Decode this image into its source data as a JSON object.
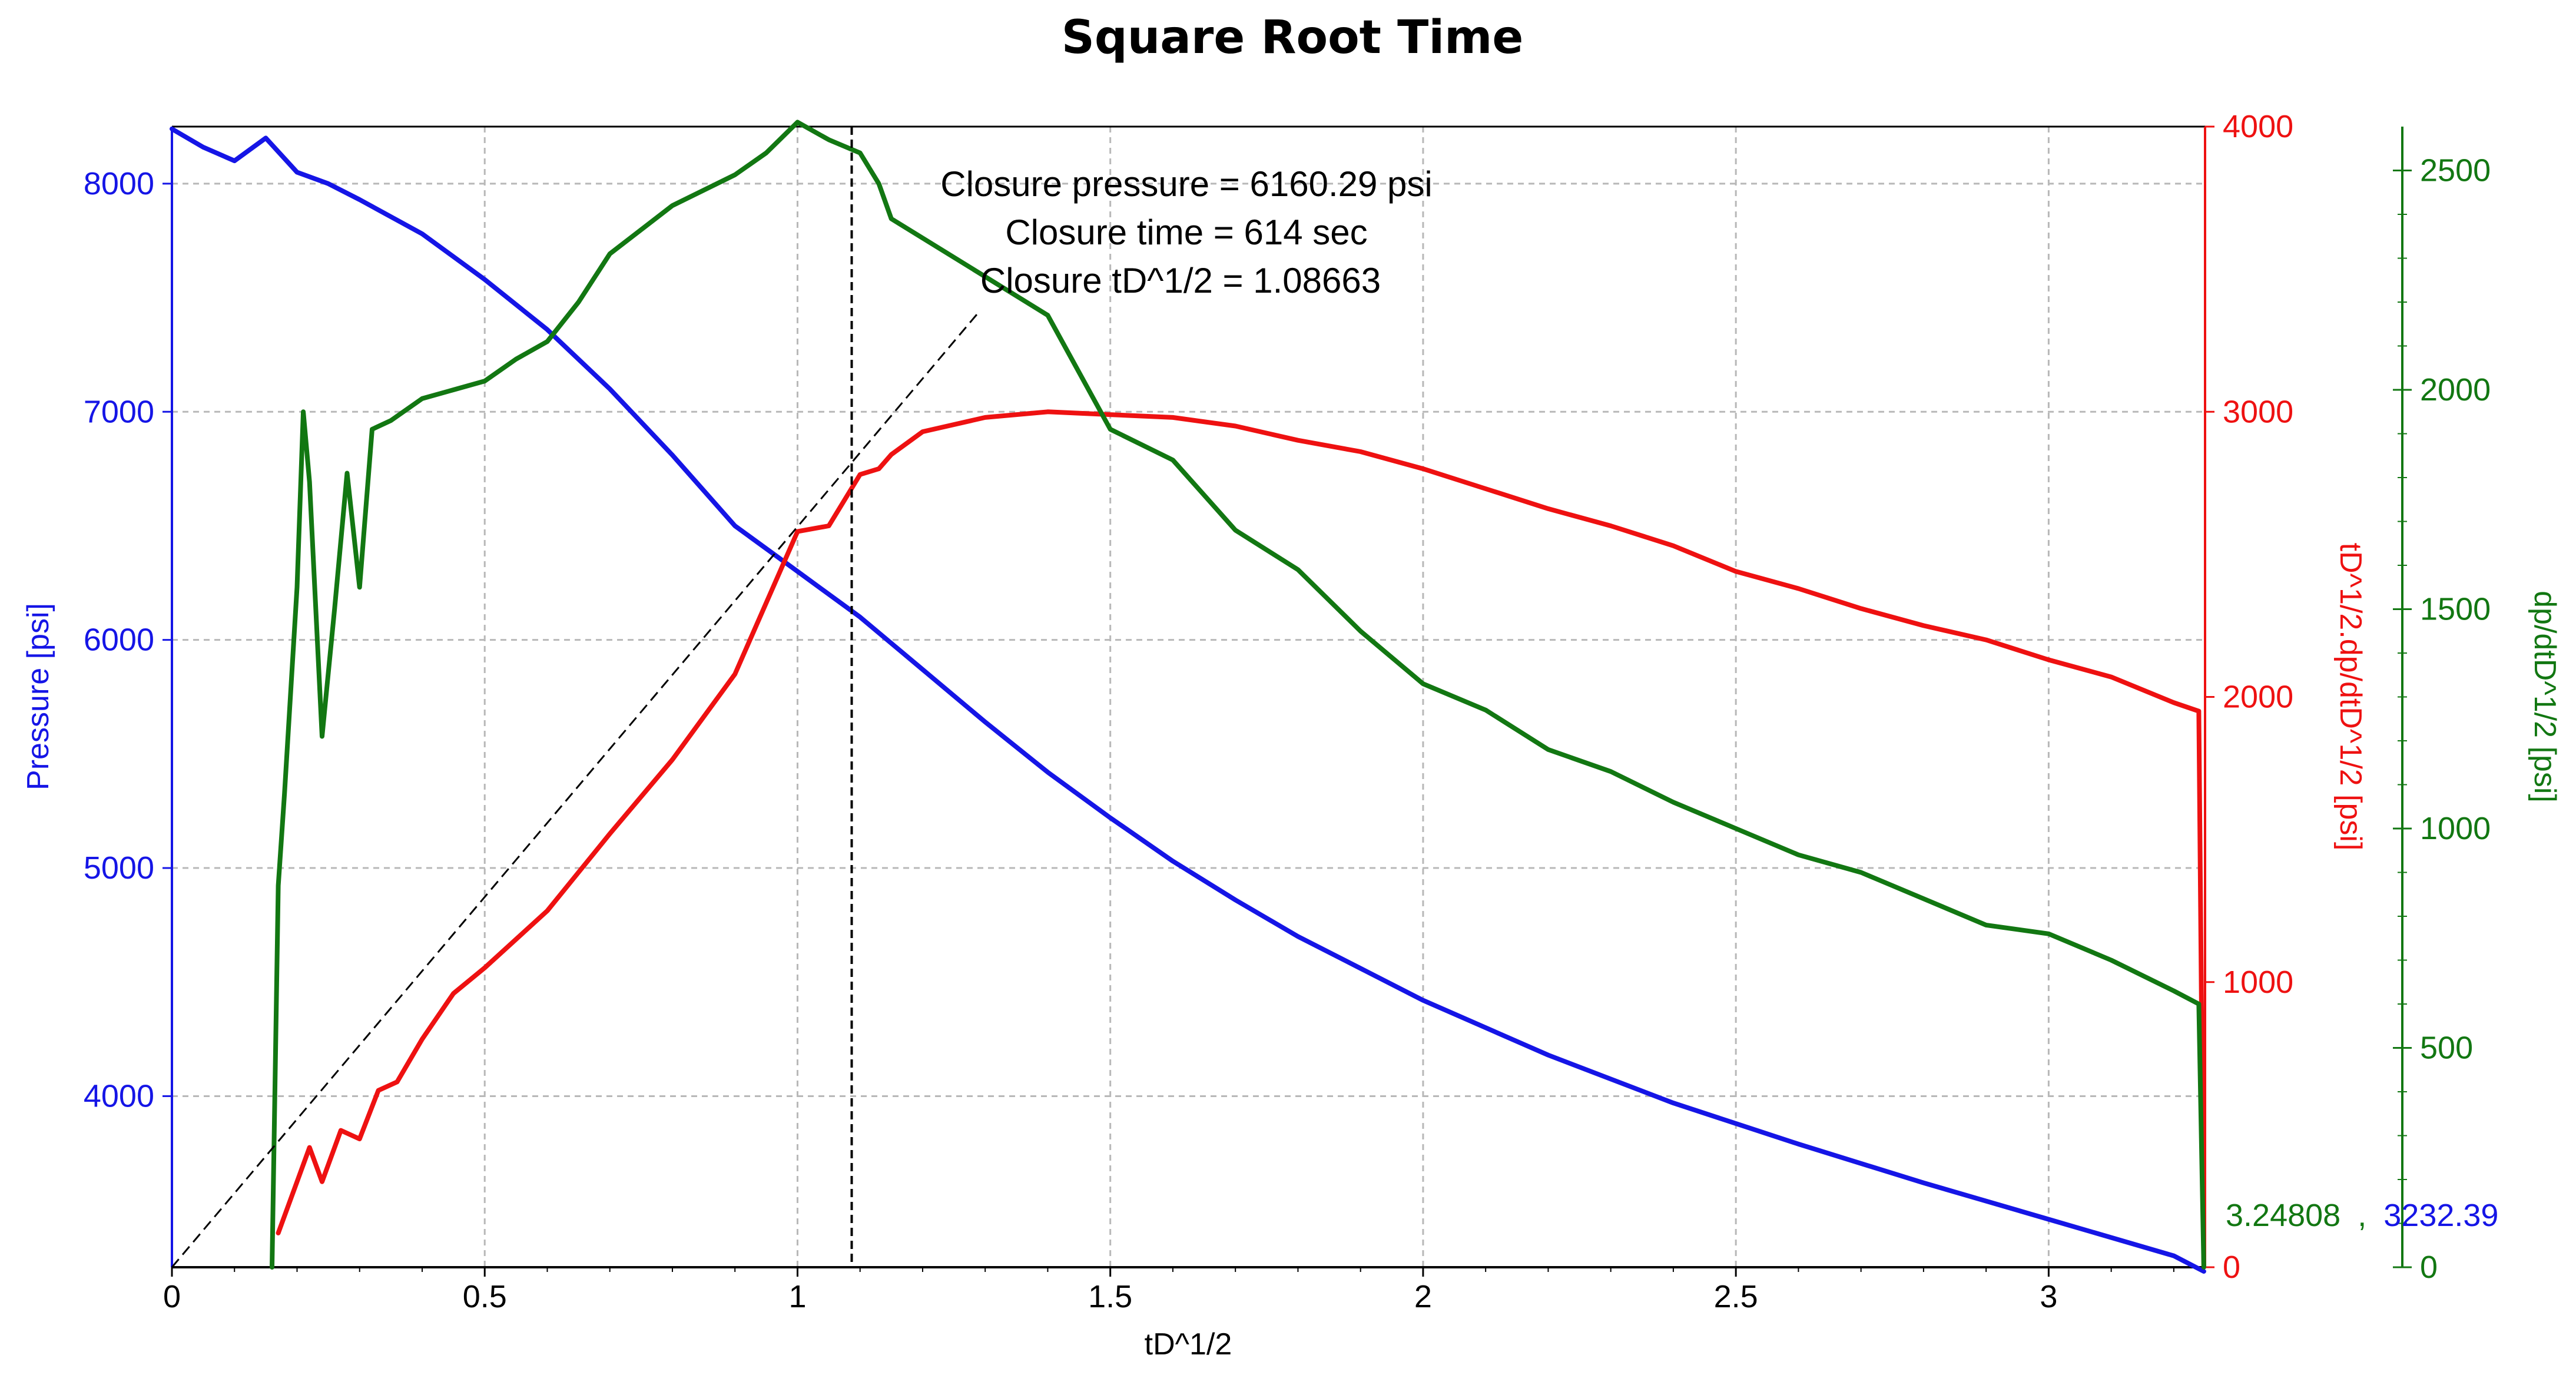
{
  "chart_data": {
    "type": "line",
    "title": "Square Root Time",
    "xlabel": "tD^1/2",
    "xlim": [
      0,
      3.25
    ],
    "xticks": [
      0,
      0.5,
      1,
      1.5,
      2,
      2.5,
      3
    ],
    "xtick_labels": [
      "0",
      "0.5",
      "1",
      "1.5",
      "2",
      "2.5",
      "3"
    ],
    "grid": true,
    "axes": {
      "left": {
        "label": "Pressure [psi]",
        "color": "#1515e6",
        "range": [
          3250,
          8250
        ],
        "ticks": [
          4000,
          5000,
          6000,
          7000,
          8000
        ],
        "tick_labels": [
          "4000",
          "5000",
          "6000",
          "7000",
          "8000"
        ]
      },
      "right1": {
        "label": "tD^1/2.dp/dtD^1/2 [psi]",
        "color": "#ee1111",
        "range": [
          0,
          4000
        ],
        "ticks": [
          0,
          1000,
          2000,
          3000,
          4000
        ],
        "tick_labels": [
          "0",
          "1000",
          "2000",
          "3000",
          "4000"
        ]
      },
      "right2": {
        "label": "dp/dtD^1/2 [psi]",
        "color": "#127712",
        "range": [
          0,
          2600
        ],
        "ticks": [
          0,
          500,
          1000,
          1500,
          2000,
          2500
        ],
        "tick_labels": [
          "0",
          "500",
          "1000",
          "1500",
          "2000",
          "2500"
        ]
      }
    },
    "series": [
      {
        "name": "Pressure",
        "axis": "left",
        "color": "#1515e6",
        "x": [
          0,
          0.05,
          0.1,
          0.15,
          0.2,
          0.25,
          0.3,
          0.4,
          0.5,
          0.6,
          0.7,
          0.8,
          0.9,
          1.0,
          1.1,
          1.2,
          1.3,
          1.4,
          1.5,
          1.6,
          1.7,
          1.8,
          1.9,
          2.0,
          2.2,
          2.4,
          2.6,
          2.8,
          3.0,
          3.2,
          3.248
        ],
        "y": [
          8240,
          8160,
          8100,
          8200,
          8050,
          8000,
          7930,
          7780,
          7580,
          7360,
          7100,
          6810,
          6500,
          6300,
          6100,
          5870,
          5640,
          5420,
          5220,
          5030,
          4860,
          4700,
          4560,
          4420,
          4180,
          3970,
          3790,
          3620,
          3460,
          3300,
          3232
        ]
      },
      {
        "name": "tD^1/2.dp/dtD^1/2",
        "axis": "right1",
        "color": "#ee1111",
        "x": [
          0.17,
          0.2,
          0.22,
          0.24,
          0.27,
          0.3,
          0.33,
          0.36,
          0.4,
          0.45,
          0.5,
          0.6,
          0.7,
          0.8,
          0.9,
          1.0,
          1.05,
          1.1,
          1.13,
          1.15,
          1.2,
          1.3,
          1.4,
          1.5,
          1.6,
          1.7,
          1.8,
          1.9,
          2.0,
          2.1,
          2.2,
          2.3,
          2.4,
          2.5,
          2.6,
          2.7,
          2.8,
          2.9,
          3.0,
          3.1,
          3.2,
          3.24,
          3.248
        ],
        "y": [
          120,
          300,
          420,
          300,
          480,
          450,
          620,
          650,
          800,
          960,
          1050,
          1250,
          1520,
          1780,
          2080,
          2580,
          2600,
          2780,
          2800,
          2850,
          2930,
          2980,
          3000,
          2990,
          2980,
          2950,
          2900,
          2860,
          2800,
          2730,
          2660,
          2600,
          2530,
          2440,
          2380,
          2310,
          2250,
          2200,
          2130,
          2070,
          1980,
          1950,
          0
        ]
      },
      {
        "name": "dp/dtD^1/2",
        "axis": "right2",
        "color": "#127712",
        "x": [
          0.16,
          0.17,
          0.18,
          0.2,
          0.21,
          0.22,
          0.24,
          0.26,
          0.28,
          0.3,
          0.32,
          0.35,
          0.4,
          0.45,
          0.5,
          0.55,
          0.6,
          0.65,
          0.7,
          0.8,
          0.9,
          0.95,
          1.0,
          1.05,
          1.1,
          1.13,
          1.15,
          1.4,
          1.5,
          1.6,
          1.7,
          1.8,
          1.9,
          2.0,
          2.1,
          2.2,
          2.3,
          2.4,
          2.5,
          2.6,
          2.7,
          2.8,
          2.9,
          3.0,
          3.1,
          3.2,
          3.24,
          3.248
        ],
        "y": [
          0,
          870,
          1080,
          1550,
          1950,
          1790,
          1210,
          1500,
          1810,
          1550,
          1910,
          1930,
          1980,
          2000,
          2020,
          2070,
          2110,
          2200,
          2310,
          2420,
          2490,
          2540,
          2610,
          2570,
          2540,
          2470,
          2390,
          2170,
          1910,
          1840,
          1680,
          1590,
          1450,
          1330,
          1270,
          1180,
          1130,
          1060,
          1000,
          940,
          900,
          840,
          780,
          760,
          700,
          630,
          600,
          0
        ]
      }
    ],
    "annotations": {
      "lines": [
        "Closure pressure = 6160.29 psi",
        "Closure time = 614 sec",
        "Closure tD^1/2 = 1.08663"
      ],
      "closure_x": 1.08663,
      "tangent_line": {
        "x": [
          0,
          1.29
        ],
        "y": [
          0,
          3350
        ],
        "axis": "right1"
      },
      "cursor_readout": {
        "x_text": "3.24808",
        "separator": ",",
        "y_text": "3232.39"
      }
    }
  }
}
